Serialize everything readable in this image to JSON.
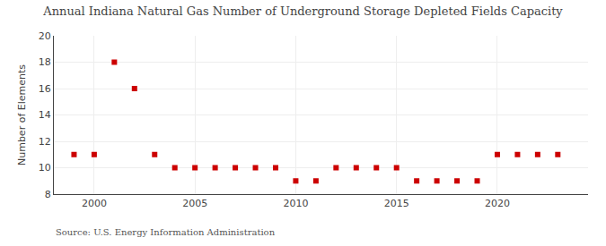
{
  "chart_data": {
    "type": "scatter",
    "title": "Annual Indiana Natural Gas Number of Underground Storage Depleted Fields Capacity",
    "y_label": "Number of Elements",
    "annotations": [
      "Source: U.S. Energy Information Administration"
    ],
    "x": [
      1999,
      2000,
      2001,
      2002,
      2003,
      2004,
      2005,
      2006,
      2007,
      2008,
      2009,
      2010,
      2011,
      2012,
      2013,
      2014,
      2015,
      2016,
      2017,
      2018,
      2019,
      2020,
      2021,
      2022,
      2023
    ],
    "values": [
      11,
      11,
      18,
      16,
      11,
      10,
      10,
      10,
      10,
      10,
      10,
      9,
      9,
      10,
      10,
      10,
      10,
      9,
      9,
      9,
      9,
      11,
      11,
      11,
      11
    ],
    "color": "#cc0000",
    "marker": "square",
    "xlim": [
      1998.0,
      2024.5
    ],
    "xticks": [
      2000,
      2005,
      2010,
      2015,
      2020
    ],
    "ylim": [
      8,
      20
    ],
    "yticks": [
      8,
      10,
      12,
      14,
      16,
      18,
      20
    ],
    "grid": true
  }
}
